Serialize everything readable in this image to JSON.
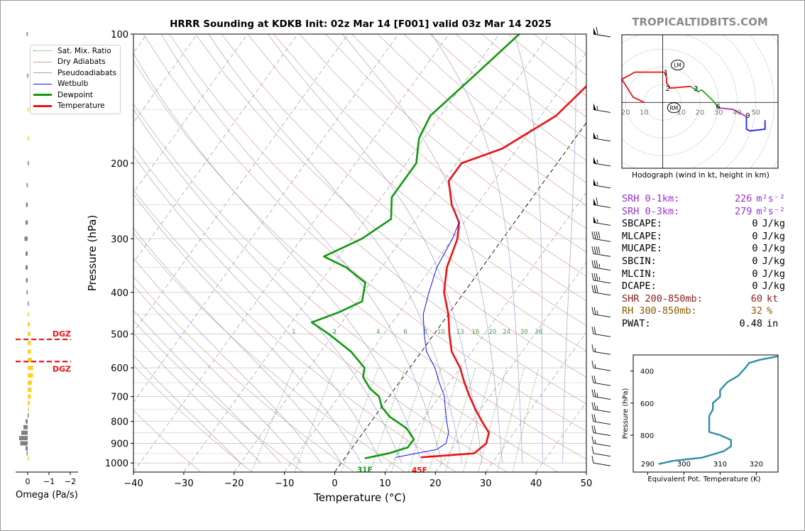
{
  "header": {
    "title": "HRRR Sounding at KDKB Init: 02z Mar 14 [F001] valid 03z Mar 14 2025",
    "brand": "TROPICALTIDBITS.COM"
  },
  "colors": {
    "temperature": "#ee1111",
    "dewpoint": "#119911",
    "wetbulb": "#1111ee",
    "dry_adiabat": "#d9a0a0",
    "moist_adiabat": "#a0a0d9",
    "mixing_ratio": "#4e9f4e",
    "isotherm_ref": "#000000",
    "srh": "#9932cc",
    "shr": "#8b1a1a",
    "rh": "#8b5a00",
    "theta_e": "#2e8fa6",
    "brand": "#8c8c8c",
    "dgz": "#ee1111",
    "omega_pos": "#ffd21f",
    "omega_neg": "#808080"
  },
  "legend": {
    "items": [
      {
        "label": "Sat. Mix. Ratio",
        "style": "dotted",
        "color": "#4e9f4e"
      },
      {
        "label": "Dry Adiabats",
        "style": "solid-thin",
        "color": "#c9a0a0"
      },
      {
        "label": "Pseudoadiabats",
        "style": "solid-thin",
        "color": "#a0a0c9"
      },
      {
        "label": "Wetbulb",
        "style": "solid",
        "color": "#1111ee"
      },
      {
        "label": "Dewpoint",
        "style": "thick",
        "color": "#119911"
      },
      {
        "label": "Temperature",
        "style": "thick",
        "color": "#ee1111"
      }
    ]
  },
  "chart_data": [
    {
      "type": "line",
      "name": "skew-t",
      "xlabel": "Temperature (°C)",
      "ylabel": "Pressure (hPa)",
      "x_ticks": [
        -40,
        -30,
        -20,
        -10,
        0,
        10,
        20,
        30,
        40,
        50
      ],
      "y_ticks": [
        100,
        200,
        300,
        400,
        500,
        600,
        700,
        800,
        900,
        1000
      ],
      "xlim": [
        -40,
        50
      ],
      "ylim": [
        1050,
        100
      ],
      "y_scale": "log",
      "skew": true,
      "series": [
        {
          "name": "Temperature",
          "points": [
            [
              -2,
              100
            ],
            [
              -5,
              130
            ],
            [
              -7,
              155
            ],
            [
              -13,
              185
            ],
            [
              -19,
              200
            ],
            [
              -19,
              220
            ],
            [
              -15,
              250
            ],
            [
              -11,
              275
            ],
            [
              -9,
              300
            ],
            [
              -7,
              350
            ],
            [
              -4,
              400
            ],
            [
              0,
              450
            ],
            [
              3,
              500
            ],
            [
              6,
              550
            ],
            [
              10,
              600
            ],
            [
              13,
              650
            ],
            [
              16,
              700
            ],
            [
              19,
              750
            ],
            [
              22,
              800
            ],
            [
              25,
              850
            ],
            [
              26,
              900
            ],
            [
              25,
              950
            ],
            [
              15,
              970
            ]
          ]
        },
        {
          "name": "Dewpoint",
          "points": [
            [
              -26,
              100
            ],
            [
              -29,
              125
            ],
            [
              -32,
              155
            ],
            [
              -31,
              175
            ],
            [
              -28,
              200
            ],
            [
              -28,
              240
            ],
            [
              -25,
              270
            ],
            [
              -28,
              300
            ],
            [
              -33,
              330
            ],
            [
              -27,
              350
            ],
            [
              -21,
              380
            ],
            [
              -19,
              420
            ],
            [
              -22,
              445
            ],
            [
              -26,
              470
            ],
            [
              -21,
              500
            ],
            [
              -14,
              550
            ],
            [
              -9,
              600
            ],
            [
              -8,
              630
            ],
            [
              -5,
              670
            ],
            [
              -2,
              700
            ],
            [
              0,
              740
            ],
            [
              3,
              780
            ],
            [
              8,
              830
            ],
            [
              11,
              880
            ],
            [
              11,
              920
            ],
            [
              8,
              950
            ],
            [
              4,
              975
            ]
          ]
        },
        {
          "name": "Wetbulb",
          "points": [
            [
              -11,
              275
            ],
            [
              -10,
              300
            ],
            [
              -9,
              350
            ],
            [
              -7,
              400
            ],
            [
              -5,
              450
            ],
            [
              -2,
              500
            ],
            [
              1,
              550
            ],
            [
              5,
              600
            ],
            [
              8,
              650
            ],
            [
              11,
              700
            ],
            [
              13,
              750
            ],
            [
              15,
              800
            ],
            [
              17,
              850
            ],
            [
              18,
              900
            ],
            [
              17,
              930
            ],
            [
              10,
              970
            ]
          ]
        }
      ],
      "mixing_ratio_labels": [
        "1",
        "2",
        "4",
        "6",
        "8",
        "10",
        "13",
        "16",
        "20",
        "24",
        "30",
        "36"
      ],
      "mixing_ratio_values": [
        1,
        2,
        4,
        6,
        8,
        10,
        13,
        16,
        20,
        24,
        30,
        36
      ],
      "surface_labels": {
        "dewpoint": "31F",
        "temperature": "45F"
      },
      "wind_barbs": [
        {
          "p": 100,
          "speed": 60
        },
        {
          "p": 150,
          "speed": 55
        },
        {
          "p": 175,
          "speed": 55
        },
        {
          "p": 200,
          "speed": 55
        },
        {
          "p": 225,
          "speed": 55
        },
        {
          "p": 250,
          "speed": 60
        },
        {
          "p": 275,
          "speed": 55
        },
        {
          "p": 300,
          "speed": 40
        },
        {
          "p": 325,
          "speed": 40
        },
        {
          "p": 350,
          "speed": 35
        },
        {
          "p": 375,
          "speed": 35
        },
        {
          "p": 400,
          "speed": 30
        },
        {
          "p": 450,
          "speed": 25
        },
        {
          "p": 500,
          "speed": 20
        },
        {
          "p": 550,
          "speed": 15
        },
        {
          "p": 600,
          "speed": 15
        },
        {
          "p": 650,
          "speed": 20
        },
        {
          "p": 700,
          "speed": 25
        },
        {
          "p": 750,
          "speed": 25
        },
        {
          "p": 800,
          "speed": 20
        },
        {
          "p": 850,
          "speed": 20
        },
        {
          "p": 900,
          "speed": 15
        },
        {
          "p": 950,
          "speed": 10
        },
        {
          "p": 1000,
          "speed": 10
        }
      ]
    },
    {
      "type": "bar",
      "name": "omega",
      "xlabel": "Omega (Pa/s)",
      "x_ticks": [
        "0",
        "−1",
        "−2"
      ],
      "dgz_label": "DGZ",
      "dgz_top_hpa": 515,
      "dgz_bottom_hpa": 580,
      "levels_hpa": [
        100,
        125,
        150,
        175,
        200,
        225,
        250,
        275,
        300,
        325,
        350,
        375,
        400,
        425,
        450,
        475,
        500,
        525,
        550,
        575,
        600,
        625,
        650,
        675,
        700,
        725,
        750,
        775,
        800,
        825,
        850,
        875,
        900,
        925,
        950,
        975
      ],
      "values": [
        0.05,
        0.02,
        -0.05,
        -0.05,
        0.0,
        0.05,
        0.08,
        0.1,
        0.15,
        0.1,
        0.1,
        0.08,
        0.05,
        0.0,
        -0.05,
        -0.1,
        -0.12,
        -0.15,
        -0.15,
        -0.2,
        -0.25,
        -0.25,
        -0.2,
        -0.18,
        -0.15,
        -0.1,
        -0.05,
        0.0,
        0.1,
        0.2,
        0.3,
        0.4,
        0.35,
        0.1,
        0.05,
        -0.02
      ]
    },
    {
      "type": "line",
      "name": "hodograph",
      "caption": "Hodograph (wind in kt, height in km)",
      "xlim": [
        -22,
        62
      ],
      "ylim": [
        -37,
        38
      ],
      "ring_labels": [
        "20",
        "10",
        "10",
        "20",
        "30",
        "40",
        "50"
      ],
      "ring_label_values": [
        -20,
        -10,
        10,
        20,
        30,
        40,
        50
      ],
      "height_labels": [
        {
          "text": "1",
          "u": 1,
          "v": 17
        },
        {
          "text": "2",
          "u": 2,
          "v": 8
        },
        {
          "text": "3",
          "u": 17,
          "v": 8
        },
        {
          "text": "6",
          "u": 29,
          "v": -2
        },
        {
          "text": "9",
          "u": 45,
          "v": -7
        }
      ],
      "markers": [
        {
          "text": "LM",
          "u": 8,
          "v": 21
        },
        {
          "text": "RM",
          "u": 6,
          "v": -3
        }
      ],
      "segments": [
        {
          "color": "#ee1111",
          "points": [
            [
              -10,
              0
            ],
            [
              -16,
              3
            ],
            [
              -22,
              13
            ],
            [
              -15,
              17
            ],
            [
              1,
              17
            ]
          ]
        },
        {
          "color": "#ee1111",
          "points": [
            [
              1,
              17
            ],
            [
              2,
              14
            ],
            [
              2,
              11
            ],
            [
              4,
              8
            ],
            [
              15,
              9
            ]
          ]
        },
        {
          "color": "#22aa22",
          "points": [
            [
              15,
              9
            ],
            [
              19,
              6
            ],
            [
              21,
              7
            ],
            [
              27,
              1
            ],
            [
              30,
              -3
            ]
          ]
        },
        {
          "color": "#aa33aa",
          "points": [
            [
              30,
              -3
            ],
            [
              38,
              -4
            ],
            [
              45,
              -8
            ]
          ]
        },
        {
          "color": "#2222ee",
          "points": [
            [
              45,
              -8
            ],
            [
              45,
              -15
            ],
            [
              47,
              -16
            ],
            [
              55,
              -15
            ],
            [
              55,
              -10
            ]
          ]
        }
      ]
    },
    {
      "type": "line",
      "name": "theta-e",
      "xlabel": "Equivalent Pot. Temperature (K)",
      "ylabel": "Pressure (hPa)",
      "x_ticks": [
        290,
        300,
        310,
        320
      ],
      "y_ticks": [
        400,
        600,
        800
      ],
      "xlim": [
        286,
        326
      ],
      "ylim": [
        1030,
        300
      ],
      "points": [
        [
          328,
          300
        ],
        [
          321,
          330
        ],
        [
          318,
          350
        ],
        [
          317,
          380
        ],
        [
          315,
          430
        ],
        [
          312,
          470
        ],
        [
          310,
          520
        ],
        [
          310,
          560
        ],
        [
          308,
          600
        ],
        [
          308,
          640
        ],
        [
          307,
          680
        ],
        [
          307,
          740
        ],
        [
          307,
          780
        ],
        [
          310,
          800
        ],
        [
          313,
          830
        ],
        [
          313,
          870
        ],
        [
          311,
          900
        ],
        [
          305,
          940
        ],
        [
          297,
          960
        ],
        [
          293,
          980
        ]
      ]
    }
  ],
  "stats": [
    {
      "label": "SRH 0-1km:",
      "value": "226",
      "unit": "m²s⁻²",
      "color": "#9932cc"
    },
    {
      "label": "SRH 0-3km:",
      "value": "279",
      "unit": "m²s⁻²",
      "color": "#9932cc"
    },
    {
      "label": "SBCAPE:",
      "value": "0",
      "unit": "J/kg",
      "color": "#000000"
    },
    {
      "label": "MLCAPE:",
      "value": "0",
      "unit": "J/kg",
      "color": "#000000"
    },
    {
      "label": "MUCAPE:",
      "value": "0",
      "unit": "J/kg",
      "color": "#000000"
    },
    {
      "label": "SBCIN:",
      "value": "0",
      "unit": "J/kg",
      "color": "#000000"
    },
    {
      "label": "MLCIN:",
      "value": "0",
      "unit": "J/kg",
      "color": "#000000"
    },
    {
      "label": "DCAPE:",
      "value": "0",
      "unit": "J/kg",
      "color": "#000000"
    },
    {
      "label": "SHR 200-850mb:",
      "value": "60",
      "unit": "kt",
      "color": "#8b1a1a"
    },
    {
      "label": "RH 300-850mb:",
      "value": "32",
      "unit": "%",
      "color": "#8b5a00"
    },
    {
      "label": "PWAT:",
      "value": "0.48",
      "unit": "in",
      "color": "#000000"
    }
  ]
}
